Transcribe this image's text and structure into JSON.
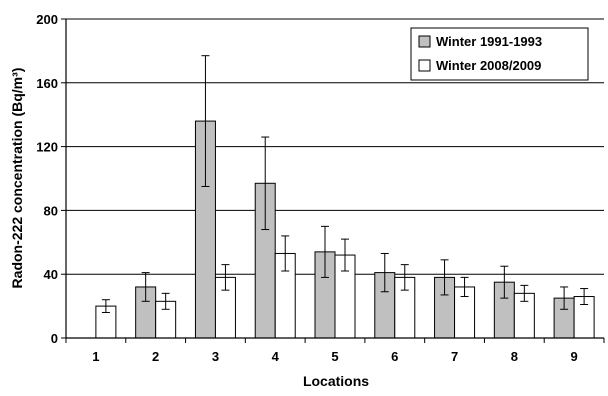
{
  "chart_data": {
    "type": "bar",
    "xlabel": "Locations",
    "ylabel": "Radon-222 concentration (Bq/m³)",
    "ylim": [
      0,
      200
    ],
    "yticks": [
      0,
      40,
      80,
      120,
      160,
      200
    ],
    "grid": true,
    "legend_position": "top-right",
    "categories": [
      "1",
      "2",
      "3",
      "4",
      "5",
      "6",
      "7",
      "8",
      "9"
    ],
    "series": [
      {
        "name": "Winter 1991-1993",
        "color": "#c0c0c0",
        "values": [
          null,
          32,
          136,
          97,
          54,
          41,
          38,
          35,
          25
        ],
        "errors": [
          null,
          9,
          41,
          29,
          16,
          12,
          11,
          10,
          7
        ]
      },
      {
        "name": "Winter 2008/2009",
        "color": "#ffffff",
        "values": [
          20,
          23,
          38,
          53,
          52,
          38,
          32,
          28,
          26
        ],
        "errors": [
          4,
          5,
          8,
          11,
          10,
          8,
          6,
          5,
          5
        ]
      }
    ]
  }
}
